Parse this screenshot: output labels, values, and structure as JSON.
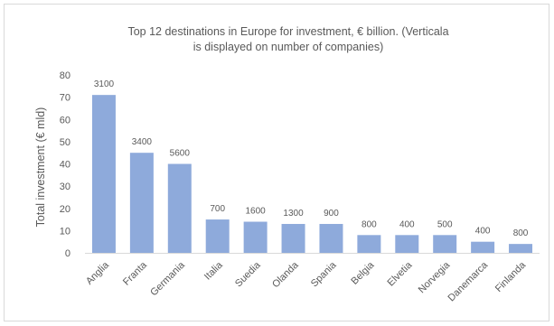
{
  "chart_data": {
    "type": "bar",
    "title_lines": [
      "Top 12 destinations in Europe for investment, € billion. (Verticala",
      "is displayed on number of companies)"
    ],
    "xlabel": "",
    "ylabel": "Total investment (€ mld)",
    "ylim": [
      0,
      80
    ],
    "yticks": [
      0,
      10,
      20,
      30,
      40,
      50,
      60,
      70,
      80
    ],
    "grid": false,
    "legend": "none",
    "bar_color": "#8eaadb",
    "categories": [
      "Anglia",
      "Franta",
      "Germania",
      "Italia",
      "Suedia",
      "Olanda",
      "Spania",
      "Belgia",
      "Elvetia",
      "Norvegia",
      "Danemarca",
      "Finlanda"
    ],
    "values": [
      71,
      45,
      40,
      15,
      14,
      13,
      13,
      8,
      8,
      8,
      5,
      4
    ],
    "data_labels": [
      "3100",
      "3400",
      "5600",
      "700",
      "1600",
      "1300",
      "900",
      "800",
      "400",
      "500",
      "400",
      "800"
    ]
  }
}
